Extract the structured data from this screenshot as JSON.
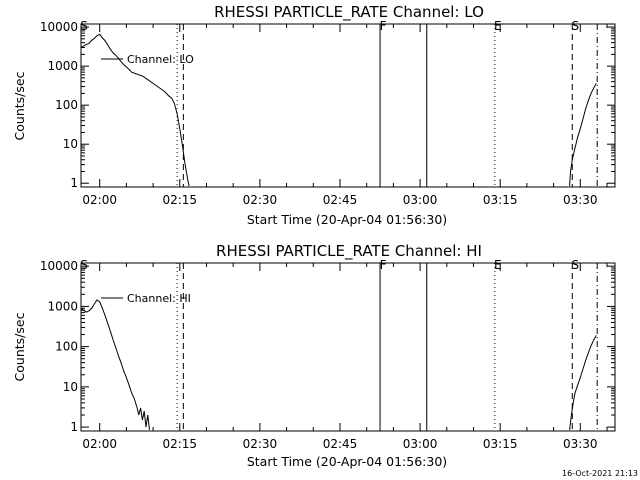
{
  "chart_data": [
    {
      "type": "line",
      "title": "RHESSI PARTICLE_RATE Channel: LO",
      "xlabel": "Start Time (20-Apr-04 01:56:30)",
      "ylabel": "Counts/sec",
      "yscale": "log",
      "ylim": [
        0.8,
        12000
      ],
      "xlim": [
        "01:56:30",
        "03:36:30"
      ],
      "yticks": [
        "1",
        "10",
        "100",
        "1000",
        "10000"
      ],
      "xticks": [
        "02:00",
        "02:15",
        "02:30",
        "02:45",
        "03:00",
        "03:15",
        "03:30"
      ],
      "legend": "Channel: LO",
      "series": [
        {
          "name": "Channel: LO",
          "segments": [
            [
              [
                "01:56:30",
                3000
              ],
              [
                "01:57:00",
                3300
              ],
              [
                "01:57:30",
                3600
              ],
              [
                "01:58:00",
                3800
              ],
              [
                "01:58:30",
                4600
              ],
              [
                "01:59:00",
                5100
              ],
              [
                "01:59:30",
                6000
              ],
              [
                "02:00:00",
                6500
              ],
              [
                "02:00:30",
                5300
              ],
              [
                "02:01:00",
                4500
              ],
              [
                "02:01:30",
                3500
              ],
              [
                "02:02:00",
                2700
              ],
              [
                "02:02:30",
                2200
              ],
              [
                "02:03:00",
                1900
              ],
              [
                "02:03:30",
                1600
              ],
              [
                "02:04:00",
                1300
              ],
              [
                "02:04:30",
                1100
              ],
              [
                "02:05:00",
                950
              ],
              [
                "02:05:30",
                820
              ],
              [
                "02:06:00",
                700
              ],
              [
                "02:07:00",
                620
              ],
              [
                "02:08:00",
                560
              ],
              [
                "02:09:00",
                450
              ],
              [
                "02:10:00",
                360
              ],
              [
                "02:11:00",
                290
              ],
              [
                "02:12:00",
                230
              ],
              [
                "02:12:30",
                200
              ],
              [
                "02:13:00",
                170
              ],
              [
                "02:13:30",
                150
              ],
              [
                "02:14:00",
                110
              ],
              [
                "02:14:30",
                60
              ],
              [
                "02:15:00",
                25
              ],
              [
                "02:15:30",
                9
              ],
              [
                "02:16:00",
                3
              ],
              [
                "02:16:30",
                1.2
              ],
              [
                "02:16:45",
                0.85
              ]
            ],
            [
              [
                "03:28:00",
                0.85
              ],
              [
                "03:28:10",
                2
              ],
              [
                "03:28:30",
                4
              ],
              [
                "03:29:00",
                8
              ],
              [
                "03:29:30",
                15
              ],
              [
                "03:30:00",
                25
              ],
              [
                "03:30:30",
                45
              ],
              [
                "03:31:00",
                80
              ],
              [
                "03:31:30",
                130
              ],
              [
                "03:32:00",
                200
              ],
              [
                "03:32:30",
                270
              ],
              [
                "03:33:00",
                360
              ]
            ]
          ]
        }
      ],
      "markers": [
        {
          "label": "S",
          "time": "01:56:30",
          "style": "none"
        },
        {
          "label": "",
          "time": "02:14:30",
          "style": "dotted"
        },
        {
          "label": "",
          "time": "02:15:40",
          "style": "dashed"
        },
        {
          "label": "F",
          "time": "02:52:30",
          "style": "solid"
        },
        {
          "label": "",
          "time": "03:01:15",
          "style": "solid"
        },
        {
          "label": "E",
          "time": "03:14:00",
          "style": "dotted"
        },
        {
          "label": "S",
          "time": "03:28:30",
          "style": "dashed"
        },
        {
          "label": "",
          "time": "03:33:10",
          "style": "dashdot"
        }
      ],
      "grid": false
    },
    {
      "type": "line",
      "title": "RHESSI PARTICLE_RATE Channel: HI",
      "xlabel": "Start Time (20-Apr-04 01:56:30)",
      "ylabel": "Counts/sec",
      "yscale": "log",
      "ylim": [
        0.8,
        12000
      ],
      "xlim": [
        "01:56:30",
        "03:36:30"
      ],
      "yticks": [
        "1",
        "10",
        "100",
        "1000",
        "10000"
      ],
      "xticks": [
        "02:00",
        "02:15",
        "02:30",
        "02:45",
        "03:00",
        "03:15",
        "03:30"
      ],
      "legend": "Channel: HI",
      "series": [
        {
          "name": "Channel: HI",
          "segments": [
            [
              [
                "01:56:30",
                900
              ],
              [
                "01:57:00",
                800
              ],
              [
                "01:57:30",
                720
              ],
              [
                "01:58:00",
                780
              ],
              [
                "01:58:30",
                900
              ],
              [
                "01:59:00",
                1150
              ],
              [
                "01:59:30",
                1450
              ],
              [
                "02:00:00",
                1300
              ],
              [
                "02:00:30",
                900
              ],
              [
                "02:01:00",
                600
              ],
              [
                "02:01:30",
                380
              ],
              [
                "02:02:00",
                240
              ],
              [
                "02:02:30",
                150
              ],
              [
                "02:03:00",
                95
              ],
              [
                "02:03:30",
                60
              ],
              [
                "02:04:00",
                40
              ],
              [
                "02:04:30",
                25
              ],
              [
                "02:05:00",
                17
              ],
              [
                "02:05:30",
                11
              ],
              [
                "02:06:00",
                7
              ],
              [
                "02:06:30",
                5
              ],
              [
                "02:07:00",
                3
              ],
              [
                "02:07:20",
                2
              ],
              [
                "02:07:40",
                3
              ],
              [
                "02:08:00",
                1.5
              ],
              [
                "02:08:20",
                2.5
              ],
              [
                "02:08:40",
                1
              ],
              [
                "02:09:00",
                2
              ],
              [
                "02:09:20",
                0.85
              ]
            ],
            [
              [
                "03:28:00",
                0.85
              ],
              [
                "03:28:20",
                2
              ],
              [
                "03:28:40",
                4
              ],
              [
                "03:29:00",
                7
              ],
              [
                "03:29:30",
                11
              ],
              [
                "03:30:00",
                17
              ],
              [
                "03:30:30",
                28
              ],
              [
                "03:31:00",
                45
              ],
              [
                "03:31:30",
                70
              ],
              [
                "03:32:00",
                105
              ],
              [
                "03:32:30",
                145
              ],
              [
                "03:33:00",
                190
              ]
            ]
          ]
        }
      ],
      "markers": [
        {
          "label": "S",
          "time": "01:56:30",
          "style": "none"
        },
        {
          "label": "",
          "time": "02:14:30",
          "style": "dotted"
        },
        {
          "label": "",
          "time": "02:15:40",
          "style": "dashed"
        },
        {
          "label": "F",
          "time": "02:52:30",
          "style": "solid"
        },
        {
          "label": "",
          "time": "03:01:15",
          "style": "solid"
        },
        {
          "label": "E",
          "time": "03:14:00",
          "style": "dotted"
        },
        {
          "label": "S",
          "time": "03:28:30",
          "style": "dashed"
        },
        {
          "label": "",
          "time": "03:33:10",
          "style": "dashdot"
        }
      ],
      "grid": false
    }
  ],
  "footer": {
    "timestamp": "16-Oct-2021 21:13"
  }
}
